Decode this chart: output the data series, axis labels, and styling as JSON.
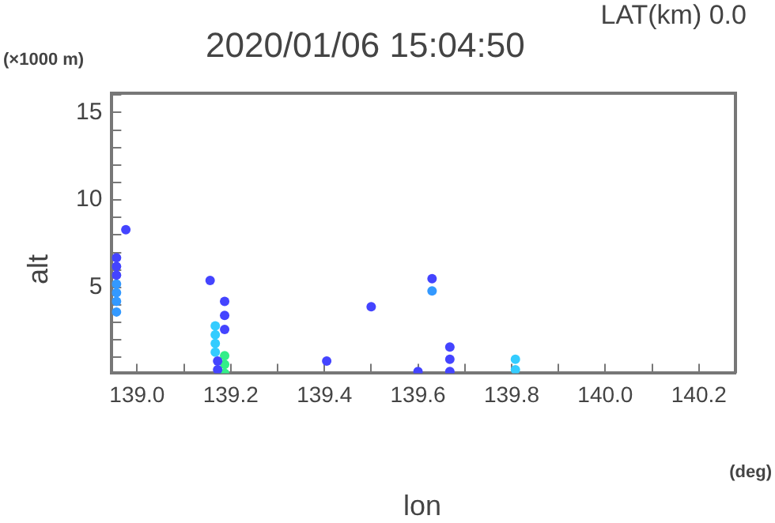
{
  "chart_data": {
    "type": "scatter",
    "title": "2020/01/06 15:04:50",
    "xlabel": "lon",
    "ylabel": "alt",
    "annotations": [
      "LAT(km) 0.0",
      "(×1000 m)",
      "(deg)"
    ],
    "xlim": [
      138.946,
      140.278
    ],
    "ylim": [
      0.1,
      16.1
    ],
    "xticks": [
      {
        "value": 139,
        "label": "139.0"
      },
      {
        "value": 139.1,
        "label": null
      },
      139.2,
      {
        "value": 139.3,
        "label": null
      },
      139.4,
      {
        "value": 139.5,
        "label": null
      },
      139.6,
      {
        "value": 139.7,
        "label": null
      },
      139.8,
      {
        "value": 139.9,
        "label": null
      },
      {
        "value": 140,
        "label": "140.0"
      },
      {
        "value": 140.1,
        "label": null
      },
      140.2
    ],
    "yticks": [
      {
        "value": 1,
        "label": null
      },
      {
        "value": 2,
        "label": null
      },
      {
        "value": 3,
        "label": null
      },
      {
        "value": 4,
        "label": null
      },
      5,
      {
        "value": 6,
        "label": null
      },
      {
        "value": 7,
        "label": null
      },
      {
        "value": 8,
        "label": null
      },
      {
        "value": 9,
        "label": null
      },
      10,
      {
        "value": 11,
        "label": null
      },
      {
        "value": 12,
        "label": null
      },
      {
        "value": 13,
        "label": null
      },
      {
        "value": 14,
        "label": null
      },
      15,
      {
        "value": 16,
        "label": null
      }
    ],
    "grid": false,
    "marker": "circle",
    "series": [
      {
        "color": "#4444ff",
        "x": [
          138.956,
          138.956,
          138.956,
          138.976,
          139.156,
          139.187,
          139.187,
          139.187,
          139.172,
          139.172,
          139.5,
          139.405,
          139.63,
          139.668,
          139.668,
          139.668,
          139.6
        ],
        "values": [
          6.7,
          6.2,
          5.7,
          8.3,
          5.4,
          4.2,
          3.4,
          2.6,
          0.8,
          0.3,
          3.9,
          0.8,
          5.5,
          1.6,
          0.9,
          0.2,
          0.2
        ]
      },
      {
        "color": "#3399ff",
        "x": [
          138.956,
          138.956,
          138.956,
          138.956,
          139.63
        ],
        "values": [
          5.2,
          4.7,
          4.2,
          3.6,
          4.8
        ]
      },
      {
        "color": "#33ccff",
        "x": [
          139.167,
          139.167,
          139.167,
          139.167,
          139.808,
          139.808
        ],
        "values": [
          2.8,
          2.3,
          1.8,
          1.3,
          0.9,
          0.3
        ]
      },
      {
        "color": "#33ee88",
        "x": [
          139.187,
          139.187,
          139.187
        ],
        "values": [
          1.1,
          0.6,
          0.1
        ]
      }
    ]
  }
}
